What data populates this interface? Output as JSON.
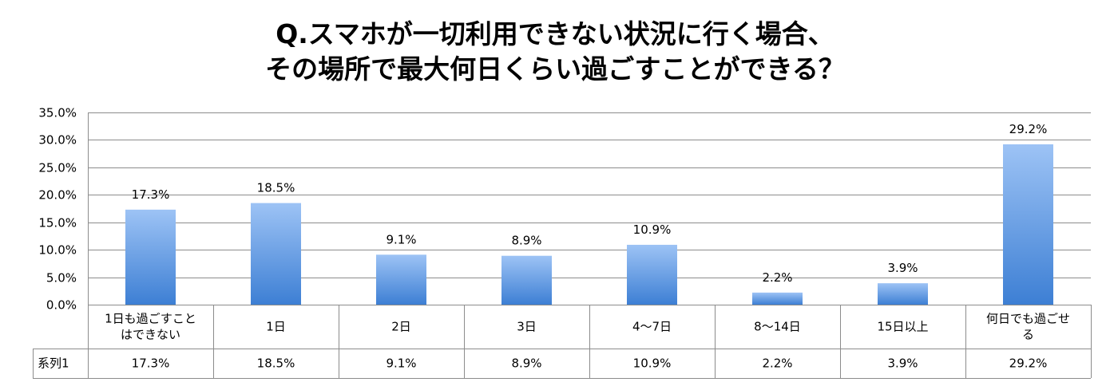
{
  "chart_data": {
    "type": "bar",
    "title_lines": [
      "Q.スマホが一切利用できない状況に行く場合、",
      "その場所で最大何日くらい過ごすことができる？"
    ],
    "categories": [
      [
        "1日も過ごすこと",
        "はできない"
      ],
      [
        "1日"
      ],
      [
        "2日"
      ],
      [
        "3日"
      ],
      [
        "4〜7日"
      ],
      [
        "8〜14日"
      ],
      [
        "15日以上"
      ],
      [
        "何日でも過ごせ",
        "る"
      ]
    ],
    "series": [
      {
        "name": "系列1",
        "values": [
          17.3,
          18.5,
          9.1,
          8.9,
          10.9,
          2.2,
          3.9,
          29.2
        ]
      }
    ],
    "value_labels": [
      "17.3%",
      "18.5%",
      "9.1%",
      "8.9%",
      "10.9%",
      "2.2%",
      "3.9%",
      "29.2%"
    ],
    "y_ticks": [
      "0.0%",
      "5.0%",
      "10.0%",
      "15.0%",
      "20.0%",
      "25.0%",
      "30.0%",
      "35.0%"
    ],
    "ylim": [
      0,
      35
    ],
    "grid": true,
    "data_table": true,
    "colors": {
      "bar_top": "#9dc3f5",
      "bar_bottom": "#3d7fd4",
      "grid": "#8c8c8c"
    }
  }
}
